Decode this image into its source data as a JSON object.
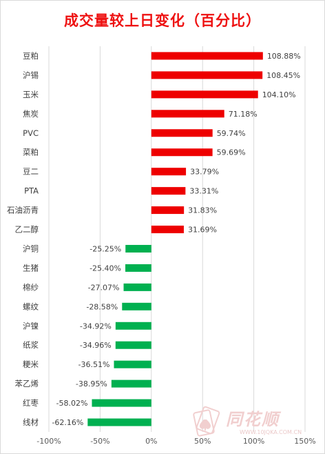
{
  "chart_data": {
    "type": "bar",
    "orientation": "horizontal",
    "title": "成交量较上日变化（百分比）",
    "categories": [
      "豆粕",
      "沪锡",
      "玉米",
      "焦炭",
      "PVC",
      "菜粕",
      "豆二",
      "PTA",
      "石油沥青",
      "乙二醇",
      "沪铜",
      "生猪",
      "棉纱",
      "螺纹",
      "沪镍",
      "纸浆",
      "粳米",
      "苯乙烯",
      "红枣",
      "线材"
    ],
    "values": [
      108.88,
      108.45,
      104.1,
      71.18,
      59.74,
      59.69,
      33.79,
      33.31,
      31.83,
      31.69,
      -25.25,
      -25.4,
      -27.07,
      -28.58,
      -34.92,
      -34.96,
      -36.51,
      -38.95,
      -58.02,
      -62.16
    ],
    "value_labels": [
      "108.88%",
      "108.45%",
      "104.10%",
      "71.18%",
      "59.74%",
      "59.69%",
      "33.79%",
      "33.31%",
      "31.83%",
      "31.69%",
      "-25.25%",
      "-25.40%",
      "-27.07%",
      "-28.58%",
      "-34.92%",
      "-34.96%",
      "-36.51%",
      "-38.95%",
      "-58.02%",
      "-62.16%"
    ],
    "xlim": [
      -100,
      150
    ],
    "xticks": [
      -100,
      -50,
      0,
      50,
      100,
      150
    ],
    "xtick_labels": [
      "-100%",
      "-50%",
      "0%",
      "50%",
      "100%",
      "150%"
    ],
    "grid": "vertical",
    "colors": {
      "positive": "#ee0000",
      "negative": "#00b050",
      "title": "#ee1111",
      "grid": "#d9d9d9"
    }
  },
  "watermark": {
    "name": "同花顺",
    "url": "WWW.10JQKA.COM.CN"
  }
}
